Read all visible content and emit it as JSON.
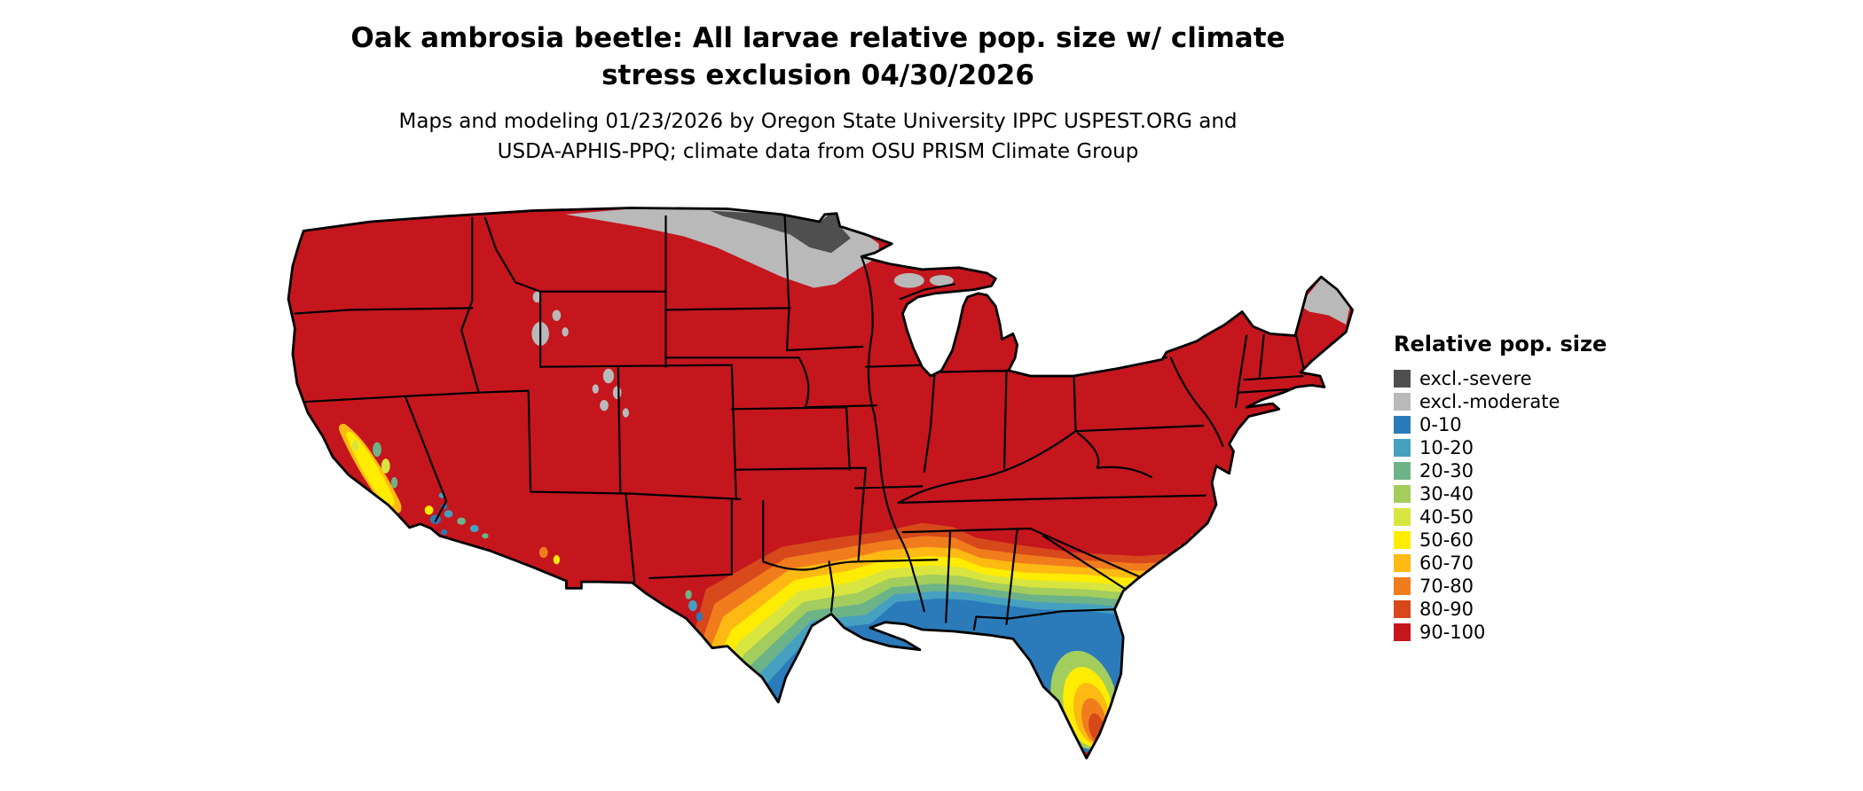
{
  "title": {
    "line1": "Oak ambrosia beetle: All larvae relative pop. size w/ climate",
    "line2": "stress exclusion 04/30/2026"
  },
  "subtitle": {
    "line1": "Maps and modeling 01/23/2026 by Oregon State University IPPC USPEST.ORG and",
    "line2": "USDA-APHIS-PPQ; climate data from OSU PRISM Climate Group"
  },
  "legend": {
    "title": "Relative pop. size",
    "items": [
      {
        "label": "excl.-severe",
        "color": "#4f4f4f",
        "var": "sev"
      },
      {
        "label": "excl.-moderate",
        "color": "#b9b9b9",
        "var": "mod"
      },
      {
        "label": "0-10",
        "color": "#2b7bba",
        "var": "b0"
      },
      {
        "label": "10-20",
        "color": "#46a0c0",
        "var": "b10"
      },
      {
        "label": "20-30",
        "color": "#6db388",
        "var": "b20"
      },
      {
        "label": "30-40",
        "color": "#a3cd5c",
        "var": "b30"
      },
      {
        "label": "40-50",
        "color": "#d9e53f",
        "var": "b40"
      },
      {
        "label": "50-60",
        "color": "#ffec00",
        "var": "b50"
      },
      {
        "label": "60-70",
        "color": "#feb913",
        "var": "b60"
      },
      {
        "label": "70-80",
        "color": "#f17c1c",
        "var": "b70"
      },
      {
        "label": "80-90",
        "color": "#d7481b",
        "var": "b80"
      },
      {
        "label": "90-100",
        "color": "#c5161d",
        "var": "b90"
      }
    ]
  }
}
